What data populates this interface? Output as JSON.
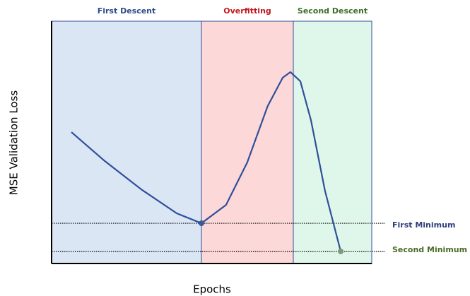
{
  "chart_data": {
    "type": "line",
    "xlabel": "Epochs",
    "ylabel": "MSE Validation Loss",
    "xlim": [
      0,
      100
    ],
    "ylim": [
      0,
      100
    ],
    "x": [
      6.2,
      16.6,
      28.0,
      39.1,
      46.8,
      54.5,
      61.1,
      67.5,
      72.2,
      74.6,
      77.7,
      81.0,
      85.4,
      90.3
    ],
    "values": [
      54.2,
      42.3,
      30.6,
      20.7,
      16.6,
      24.2,
      41.7,
      65.0,
      76.7,
      79.0,
      75.2,
      59.2,
      30.0,
      5.0
    ],
    "color": "#2f4f9a",
    "regions": [
      {
        "label": "First Descent",
        "start": 0,
        "end": 46.8,
        "color": "#dae6f4",
        "label_color": "#2e4a8a"
      },
      {
        "label": "Overfitting",
        "start": 46.8,
        "end": 75.5,
        "color": "#fdd8d8",
        "label_color": "#c0181e"
      },
      {
        "label": "Second Descent",
        "start": 75.5,
        "end": 100,
        "color": "#dff7ea",
        "label_color": "#3a6e28"
      }
    ],
    "annotations": [
      {
        "label": "First Minimum",
        "x": 46.8,
        "y": 16.6,
        "color": "#2e3f7a",
        "marker_color": "#3a5a9a"
      },
      {
        "label": "Second Minimum",
        "x": 90.3,
        "y": 5.0,
        "color": "#4a6b26",
        "marker_color": "#7a9a7a"
      }
    ]
  }
}
